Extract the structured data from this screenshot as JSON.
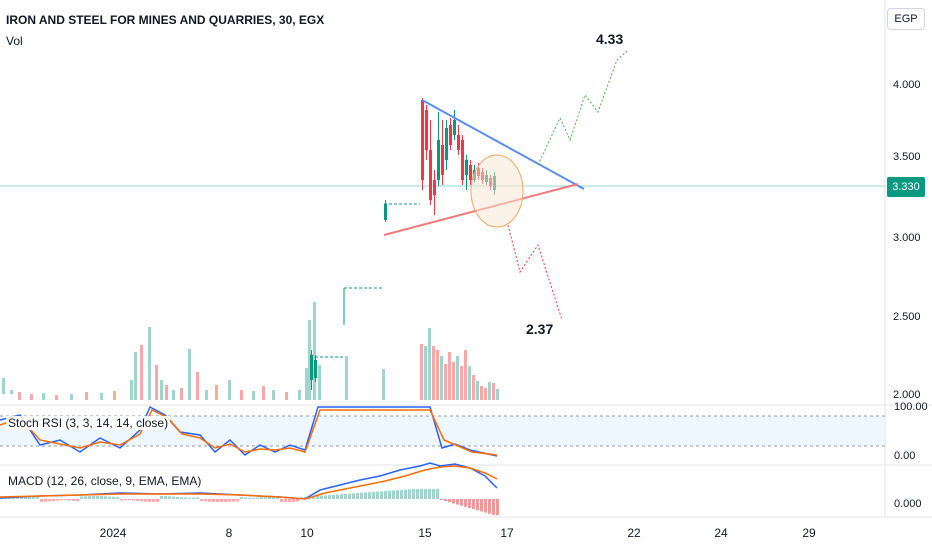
{
  "symbol_title": "IRON AND STEEL FOR MINES AND QUARRIES, 30, EGX",
  "volume_label": "Vol",
  "currency_button": "EGP",
  "price_axis": [
    "4.000",
    "3.500",
    "3.000",
    "2.500",
    "2.000"
  ],
  "last_price": "3.330",
  "annotations": {
    "target_up": "4.33",
    "target_down": "2.37"
  },
  "stoch_rsi": {
    "label": "Stoch RSI (3, 3, 14, 14, close)",
    "ticks": [
      "100.00",
      "0.00"
    ]
  },
  "macd": {
    "label": "MACD (12, 26, close, 9, EMA, EMA)",
    "ticks": [
      "0.000"
    ]
  },
  "time_axis": [
    "2024",
    "8",
    "10",
    "15",
    "17",
    "22",
    "24",
    "29"
  ],
  "colors": {
    "up": "#089981",
    "down": "#f23645",
    "upper_trendline": "#5b8def",
    "lower_trendline": "#f07a7a",
    "rsi_k": "#2962ff",
    "rsi_d": "#ff6d00"
  },
  "chart_data": {
    "type": "candlestick",
    "price_range": [
      1.95,
      4.2
    ],
    "series": [
      {
        "name": "price",
        "values": []
      }
    ]
  }
}
